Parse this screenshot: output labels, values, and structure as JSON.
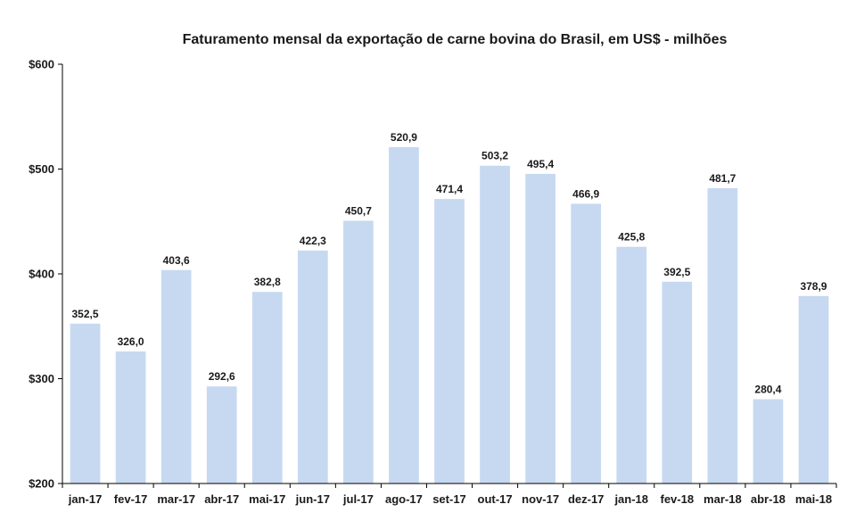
{
  "chart_data": {
    "type": "bar",
    "title": "Faturamento mensal da exportação de carne bovina do Brasil, em US$ - milhões",
    "xlabel": "",
    "ylabel": "",
    "categories": [
      "jan-17",
      "fev-17",
      "mar-17",
      "abr-17",
      "mai-17",
      "jun-17",
      "jul-17",
      "ago-17",
      "set-17",
      "out-17",
      "nov-17",
      "dez-17",
      "jan-18",
      "fev-18",
      "mar-18",
      "abr-18",
      "mai-18"
    ],
    "values": [
      352.5,
      326.0,
      403.6,
      292.6,
      382.8,
      422.3,
      450.7,
      520.9,
      471.4,
      503.2,
      495.4,
      466.9,
      425.8,
      392.5,
      481.7,
      280.4,
      378.9
    ],
    "data_labels": [
      "352,5",
      "326,0",
      "403,6",
      "292,6",
      "382,8",
      "422,3",
      "450,7",
      "520,9",
      "471,4",
      "503,2",
      "495,4",
      "466,9",
      "425,8",
      "392,5",
      "481,7",
      "280,4",
      "378,9"
    ],
    "ylim": [
      200,
      600
    ],
    "yticks": [
      200,
      300,
      400,
      500,
      600
    ],
    "ytick_labels": [
      "$200",
      "$300",
      "$400",
      "$500",
      "$600"
    ],
    "grid": false,
    "legend": "none",
    "bar_color": "#c6d9f1"
  }
}
